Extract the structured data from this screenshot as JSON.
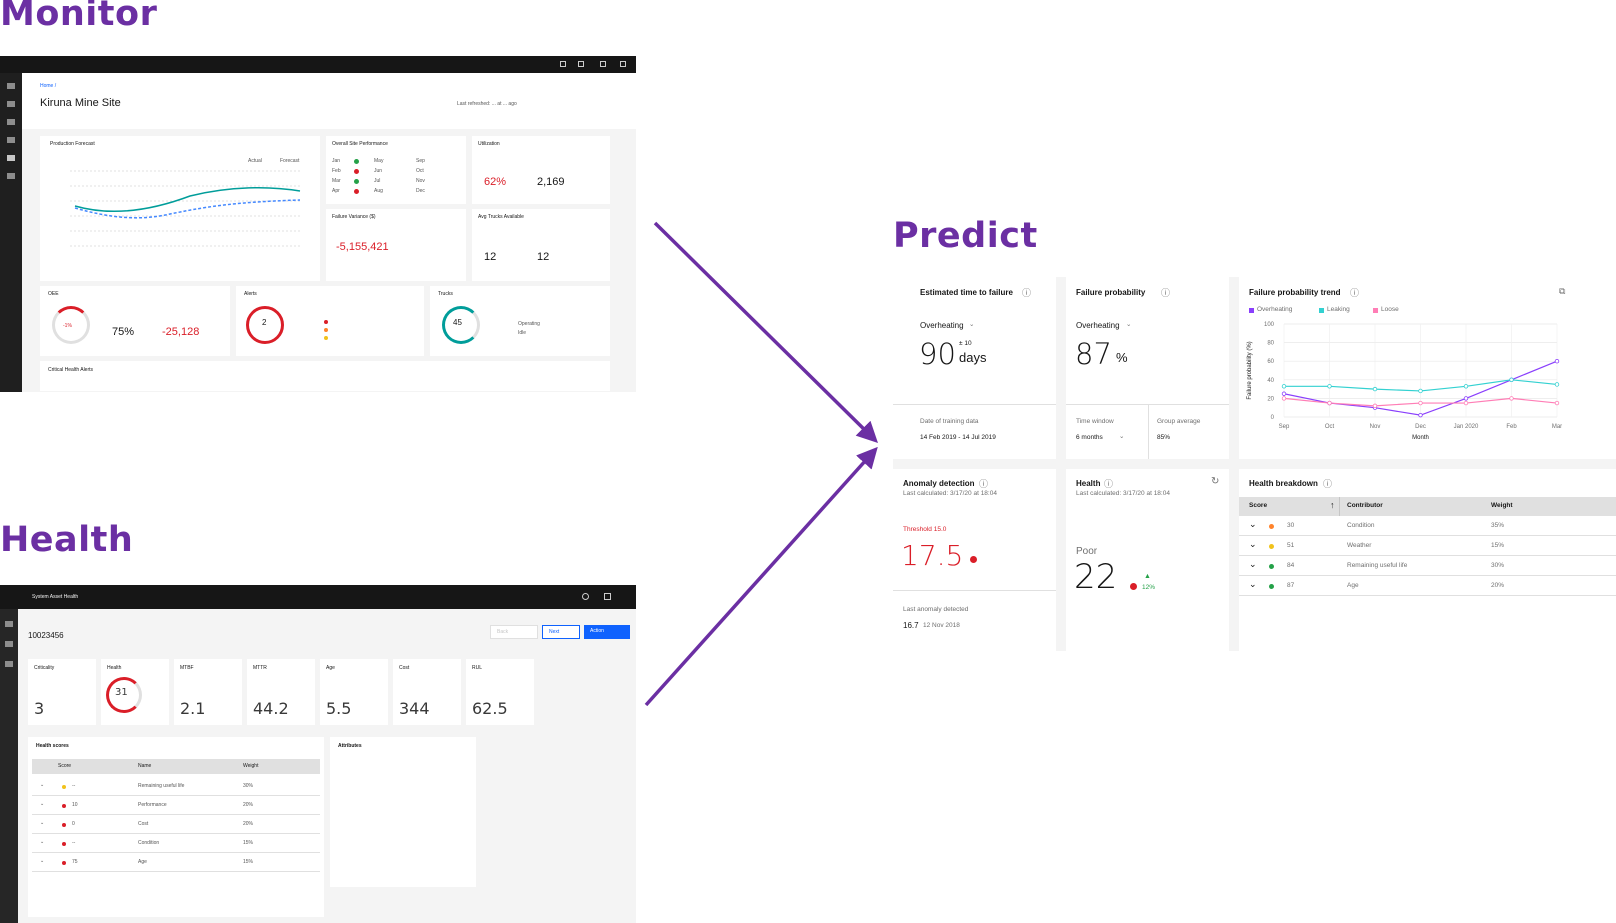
{
  "titles": {
    "monitor": "Monitor",
    "health": "Health",
    "predict": "Predict"
  },
  "monitor": {
    "breadcrumb": "Home /",
    "site_title": "Kiruna Mine Site",
    "header_meta": "Last refreshed: ... at ... ago",
    "card_forecast": {
      "title": "Production Forecast",
      "legend": [
        "Actual",
        "Forecast"
      ]
    },
    "card_performance": {
      "title": "Overall Site Performance",
      "months": [
        "Jan",
        "Feb",
        "Mar",
        "Apr",
        "May",
        "Jun",
        "Jul",
        "Aug",
        "Sep",
        "Oct",
        "Nov",
        "Dec"
      ]
    },
    "card_utilization": {
      "title": "Utilization",
      "value_a": "62%",
      "value_b": "2,169"
    },
    "card_variance": {
      "title": "Failure Variance ($)",
      "value": "-5,155,421"
    },
    "card_trucks": {
      "title": "Avg Trucks Available",
      "value_a": "12",
      "value_b": "12"
    },
    "card_oee": {
      "title": "OEE",
      "gauge": "-1%",
      "target": "75%",
      "delta": "-25,128"
    },
    "card_alerts": {
      "title": "Alerts",
      "ring": "2"
    },
    "card_trucks2": {
      "title": "Trucks",
      "ring": "45",
      "rows": [
        "Operating",
        "Idle"
      ]
    },
    "card_critical": {
      "title": "Critical Health Alerts"
    }
  },
  "health": {
    "app_title": "System Asset Health",
    "asset_id": "10023456",
    "kpis": [
      {
        "label": "Criticality",
        "value": "3"
      },
      {
        "label": "Health",
        "value": "31"
      },
      {
        "label": "MTBF",
        "value": "2.1"
      },
      {
        "label": "MTTR",
        "value": "44.2"
      },
      {
        "label": "Age",
        "value": "5.5"
      },
      {
        "label": "Cost",
        "value": "344"
      },
      {
        "label": "RUL",
        "value": "62.5"
      }
    ],
    "buttons": {
      "secondary": "Back",
      "primary": "Next",
      "action": "Action"
    },
    "table": {
      "title": "Health scores",
      "headers": [
        "Score",
        "Name",
        "Weight"
      ],
      "rows": [
        {
          "score": "--",
          "name": "Remaining useful life",
          "weight": "30%",
          "color": "#f1c21b"
        },
        {
          "score": "10",
          "name": "Performance",
          "weight": "20%",
          "color": "#da1e28"
        },
        {
          "score": "0",
          "name": "Cost",
          "weight": "20%",
          "color": "#da1e28"
        },
        {
          "score": "--",
          "name": "Condition",
          "weight": "15%",
          "color": "#da1e28"
        },
        {
          "score": "75",
          "name": "Age",
          "weight": "15%",
          "color": "#da1e28"
        }
      ]
    },
    "attributes_title": "Attributes"
  },
  "predict": {
    "ttf": {
      "title": "Estimated time to failure",
      "failure_mode": "Overheating",
      "value": "90",
      "unit": "days",
      "range": "± 10",
      "footer_label": "Date of training data",
      "footer_value": "14 Feb 2019 - 14 Jul 2019"
    },
    "prob": {
      "title": "Failure probability",
      "failure_mode": "Overheating",
      "value": "87",
      "unit": "%",
      "window_label": "Time window",
      "window_value": "6 months",
      "group_label": "Group average",
      "group_value": "85%"
    },
    "trend": {
      "title": "Failure probability trend"
    },
    "anomaly": {
      "title": "Anomaly detection",
      "calc": "Last calculated: 3/17/20 at 18:04",
      "threshold": "Threshold 15.0",
      "value": "17.5",
      "last_label": "Last anomaly detected",
      "last_value": "16.7",
      "last_date": "12 Nov 2018"
    },
    "health": {
      "title": "Health",
      "calc": "Last calculated: 3/17/20 at 18:04",
      "status": "Poor",
      "value": "22",
      "delta": "12%"
    },
    "breakdown": {
      "title": "Health breakdown",
      "headers": [
        "Score",
        "Contributor",
        "Weight"
      ],
      "rows": [
        {
          "score": "30",
          "contributor": "Condition",
          "weight": "35%",
          "color": "#ff832b"
        },
        {
          "score": "51",
          "contributor": "Weather",
          "weight": "15%",
          "color": "#f1c21b"
        },
        {
          "score": "84",
          "contributor": "Remaining useful life",
          "weight": "30%",
          "color": "#24a148"
        },
        {
          "score": "87",
          "contributor": "Age",
          "weight": "20%",
          "color": "#24a148"
        }
      ]
    }
  },
  "chart_data": [
    {
      "type": "line",
      "title": "Failure probability trend",
      "xlabel": "Month",
      "ylabel": "Failure probability (%)",
      "categories": [
        "Sep",
        "Oct",
        "Nov",
        "Dec",
        "Jan 2020",
        "Feb",
        "Mar"
      ],
      "ylim": [
        0,
        100
      ],
      "yticks": [
        0,
        20,
        40,
        60,
        80,
        100
      ],
      "grid": true,
      "legend": "top-left",
      "series": [
        {
          "name": "Overheating",
          "color": "#8a3ffc",
          "values": [
            25,
            15,
            10,
            2,
            20,
            40,
            60
          ]
        },
        {
          "name": "Leaking",
          "color": "#33d1d1",
          "values": [
            33,
            33,
            30,
            28,
            33,
            40,
            35
          ]
        },
        {
          "name": "Loose",
          "color": "#ff7eb6",
          "values": [
            20,
            15,
            12,
            15,
            15,
            20,
            15
          ]
        }
      ]
    }
  ]
}
